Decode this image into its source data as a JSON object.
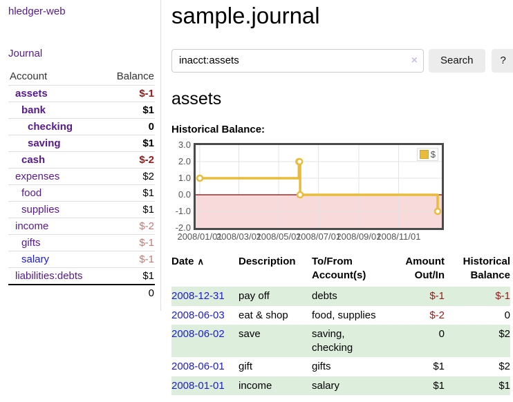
{
  "app": {
    "brand": "hledger-web"
  },
  "nav": {
    "journal": "Journal"
  },
  "icons": {
    "sort_asc": "∧",
    "clear": "×"
  },
  "colors": {
    "link_purple": "#551A8B",
    "link_blue": "#1b1bd1",
    "negative_strong": "#941a1a",
    "negative_muted": "#c47878",
    "row_stripe_green": "#ddeedd"
  },
  "sidebar": {
    "header": {
      "account": "Account",
      "balance": "Balance"
    },
    "rows": [
      {
        "name": "assets",
        "balance": "$-1"
      },
      {
        "name": "bank",
        "balance": "$1"
      },
      {
        "name": "checking",
        "balance": "0"
      },
      {
        "name": "saving",
        "balance": "$1"
      },
      {
        "name": "cash",
        "balance": "$-2"
      },
      {
        "name": "expenses",
        "balance": "$2"
      },
      {
        "name": "food",
        "balance": "$1"
      },
      {
        "name": "supplies",
        "balance": "$1"
      },
      {
        "name": "income",
        "balance": "$-2"
      },
      {
        "name": "gifts",
        "balance": "$-1"
      },
      {
        "name": "salary",
        "balance": "$-1"
      },
      {
        "name": "liabilities:debts",
        "balance": "$1"
      }
    ],
    "total": "0"
  },
  "header": {
    "title": "sample.journal"
  },
  "search": {
    "value": "inacct:assets",
    "button": "Search",
    "help": "?"
  },
  "account_page": {
    "title": "assets",
    "chart_label": "Historical Balance:"
  },
  "chart_data": {
    "type": "line",
    "step": true,
    "title": "Historical Balance",
    "xlim": [
      "2008-01-01",
      "2008-12-31"
    ],
    "ylim": [
      -2,
      3
    ],
    "yticks": [
      3,
      2,
      1,
      0,
      -1,
      -2
    ],
    "xticks": [
      {
        "label": "2008/01/01",
        "date": "2008-01-01"
      },
      {
        "label": "2008/03/01",
        "date": "2008-03-01"
      },
      {
        "label": "2008/05/01",
        "date": "2008-05-01"
      },
      {
        "label": "2008/07/01",
        "date": "2008-07-01"
      },
      {
        "label": "2008/09/01",
        "date": "2008-09-01"
      },
      {
        "label": "2008/11/01",
        "date": "2008-11-01"
      }
    ],
    "series": [
      {
        "name": "$",
        "color": "#e8bc3a",
        "points": [
          [
            "2008-01-01",
            1
          ],
          [
            "2008-06-01",
            2
          ],
          [
            "2008-06-02",
            2
          ],
          [
            "2008-06-03",
            0
          ],
          [
            "2008-12-31",
            -1
          ]
        ]
      }
    ],
    "legend_position": "top-right",
    "grid": true,
    "colors": {
      "grid": "#e3e3e3",
      "zero_line": "#8b0000",
      "negative_fill": "#f9dada",
      "marker_fill": "#ffffff"
    }
  },
  "register_table": {
    "headers": {
      "date": "Date",
      "description": "Description",
      "accounts": "To/From Account(s)",
      "amount": "Amount Out/In",
      "balance": "Historical Balance"
    },
    "rows": [
      {
        "date": "2008-12-31",
        "description": "pay off",
        "accounts": "debts",
        "amount": "$-1",
        "balance": "$-1"
      },
      {
        "date": "2008-06-03",
        "description": "eat & shop",
        "accounts": "food, supplies",
        "amount": "$-2",
        "balance": "0"
      },
      {
        "date": "2008-06-02",
        "description": "save",
        "accounts": "saving,\nchecking",
        "amount": "0",
        "balance": "$2"
      },
      {
        "date": "2008-06-01",
        "description": "gift",
        "accounts": "gifts",
        "amount": "$1",
        "balance": "$2"
      },
      {
        "date": "2008-01-01",
        "description": "income",
        "accounts": "salary",
        "amount": "$1",
        "balance": "$1"
      }
    ]
  }
}
